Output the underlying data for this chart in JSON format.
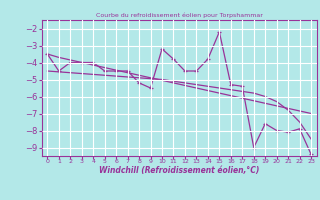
{
  "title": "Courbe du refroidissement éolien pour Torpshammar",
  "xlabel": "Windchill (Refroidissement éolien,°C)",
  "x_values": [
    0,
    1,
    2,
    3,
    4,
    5,
    6,
    7,
    8,
    9,
    10,
    11,
    12,
    13,
    14,
    15,
    16,
    17,
    18,
    19,
    20,
    21,
    22,
    23
  ],
  "y_main": [
    -3.5,
    -4.5,
    -4.0,
    -4.0,
    -4.0,
    -4.5,
    -4.5,
    -4.5,
    -5.2,
    -5.5,
    -3.2,
    -3.8,
    -4.5,
    -4.5,
    -3.8,
    -2.2,
    -5.3,
    -5.4,
    -9.0,
    -7.6,
    -8.0,
    -8.1,
    -7.9,
    -9.4
  ],
  "y_trend1": [
    -3.5,
    -3.7,
    -3.85,
    -4.0,
    -4.15,
    -4.3,
    -4.45,
    -4.6,
    -4.75,
    -4.9,
    -5.05,
    -5.2,
    -5.35,
    -5.5,
    -5.65,
    -5.8,
    -5.95,
    -6.1,
    -6.25,
    -6.4,
    -6.55,
    -6.7,
    -6.85,
    -7.0
  ],
  "y_trend2": [
    -4.5,
    -4.55,
    -4.6,
    -4.65,
    -4.7,
    -4.75,
    -4.8,
    -4.85,
    -4.9,
    -4.95,
    -5.0,
    -5.1,
    -5.2,
    -5.3,
    -5.4,
    -5.5,
    -5.6,
    -5.7,
    -5.8,
    -6.0,
    -6.3,
    -6.8,
    -7.5,
    -8.5
  ],
  "line_color": "#993399",
  "bg_color": "#b3e8e8",
  "grid_color": "#ffffff",
  "ylim": [
    -9.5,
    -1.5
  ],
  "xlim": [
    -0.5,
    23.5
  ],
  "yticks": [
    -9,
    -8,
    -7,
    -6,
    -5,
    -4,
    -3,
    -2
  ],
  "xticks": [
    0,
    1,
    2,
    3,
    4,
    5,
    6,
    7,
    8,
    9,
    10,
    11,
    12,
    13,
    14,
    15,
    16,
    17,
    18,
    19,
    20,
    21,
    22,
    23
  ]
}
